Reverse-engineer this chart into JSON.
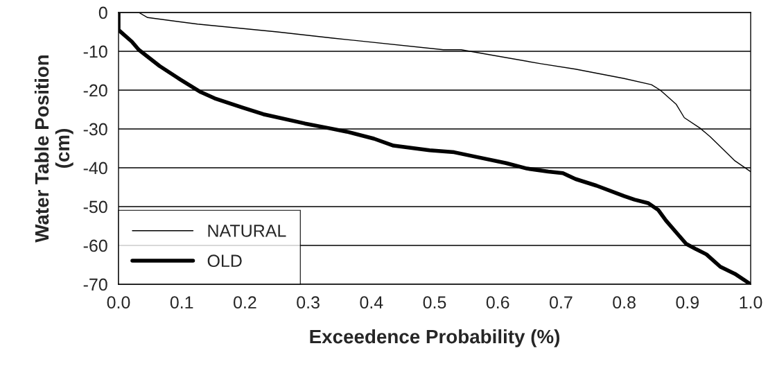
{
  "chart_data": {
    "type": "line",
    "xlabel": "Exceedence Probability (%)",
    "ylabel": "Water Table Position\n(cm)",
    "xlim": [
      0,
      1
    ],
    "xticks": [
      {
        "value": 0,
        "label": "0.0"
      },
      {
        "value": 0.1,
        "label": "0.1"
      },
      {
        "value": 0.2,
        "label": "0.2"
      },
      {
        "value": 0.3,
        "label": "0.3"
      },
      {
        "value": 0.4,
        "label": "0.4"
      },
      {
        "value": 0.5,
        "label": "0.5"
      },
      {
        "value": 0.6,
        "label": "0.6"
      },
      {
        "value": 0.7,
        "label": "0.7"
      },
      {
        "value": 0.8,
        "label": "0.8"
      },
      {
        "value": 0.9,
        "label": "0.9"
      },
      {
        "value": 1,
        "label": "1.0"
      }
    ],
    "ylim": [
      -70,
      0
    ],
    "yticks": [
      -70,
      -60,
      -50,
      -40,
      -30,
      -20,
      -10,
      0
    ],
    "grid": "y",
    "legend": "bottom left",
    "marker": "none",
    "line_style": "solid",
    "series": [
      {
        "name": "NATURAL",
        "color": "#000000",
        "x": [
          0,
          0.032,
          0.046,
          0.125,
          0.251,
          0.339,
          0.514,
          0.542,
          0.668,
          0.723,
          0.8,
          0.843,
          0.857,
          0.882,
          0.895,
          0.92,
          0.936,
          0.958,
          0.975,
          1.0
        ],
        "values": [
          0,
          0,
          -1.3,
          -3.0,
          -5.0,
          -6.6,
          -9.6,
          -9.6,
          -13.2,
          -14.6,
          -17,
          -18.6,
          -20,
          -23.6,
          -27.1,
          -29.8,
          -32,
          -35.5,
          -38.2,
          -41
        ]
      },
      {
        "name": "OLD",
        "color": "#000000",
        "x": [
          0,
          0,
          0.021,
          0.032,
          0.065,
          0.098,
          0.13,
          0.152,
          0.196,
          0.229,
          0.295,
          0.333,
          0.361,
          0.404,
          0.435,
          0.492,
          0.531,
          0.569,
          0.613,
          0.646,
          0.68,
          0.703,
          0.723,
          0.756,
          0.8,
          0.816,
          0.838,
          0.854,
          0.866,
          0.882,
          0.898,
          0.914,
          0.93,
          0.952,
          0.975,
          1.0
        ],
        "values": [
          0,
          -4.5,
          -7.5,
          -9.6,
          -13.8,
          -17.3,
          -20.5,
          -22.1,
          -24.5,
          -26.2,
          -28.6,
          -29.8,
          -30.7,
          -32.5,
          -34.3,
          -35.5,
          -36,
          -37.3,
          -38.8,
          -40.2,
          -41,
          -41.4,
          -42.9,
          -44.6,
          -47.3,
          -48.2,
          -49.1,
          -50.9,
          -53.6,
          -56.6,
          -59.6,
          -61,
          -62.3,
          -65.5,
          -67.3,
          -70
        ]
      }
    ]
  }
}
